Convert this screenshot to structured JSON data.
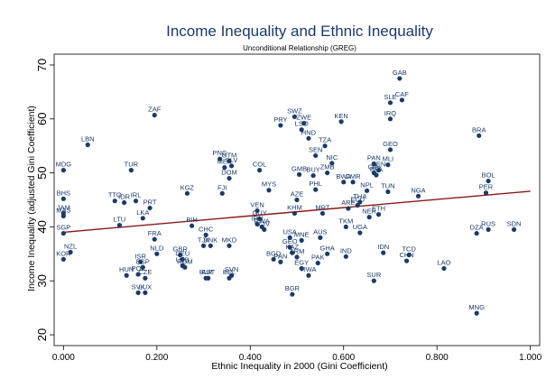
{
  "chart_data": {
    "type": "scatter",
    "title": "Income Inequality and Ethnic Inequality",
    "subtitle": "Unconditional Relationship (GREG)",
    "xlabel": "Ethnic Inequality in 2000 (Gini Coefficient)",
    "ylabel": "Income Inequality (adjusted Gini Coefficient)",
    "xlim": [
      -0.02,
      1.02
    ],
    "ylim": [
      18,
      72
    ],
    "xticks": [
      "0.000",
      "0.200",
      "0.400",
      "0.600",
      "0.800",
      "1.000"
    ],
    "yticks": [
      "20",
      "30",
      "40",
      "50",
      "60",
      "70"
    ],
    "grid": false,
    "colors": {
      "points": "#1a3a6b",
      "fit_line": "#8b1a1a",
      "title": "#1a3a6b"
    },
    "fit_line": {
      "x": [
        0.0,
        1.0
      ],
      "y": [
        39.0,
        46.6
      ]
    },
    "points": [
      {
        "label": "MDG",
        "x": 0.0,
        "y": 50.5
      },
      {
        "label": "BHS",
        "x": 0.0,
        "y": 45.2
      },
      {
        "label": "JAM",
        "x": 0.0,
        "y": 42.5
      },
      {
        "label": "MAS",
        "x": 0.0,
        "y": 42.0
      },
      {
        "label": "SGP",
        "x": 0.0,
        "y": 38.8
      },
      {
        "label": "KOR",
        "x": 0.0,
        "y": 34.0
      },
      {
        "label": "NZL",
        "x": 0.015,
        "y": 35.3
      },
      {
        "label": "LBN",
        "x": 0.052,
        "y": 55.2
      },
      {
        "label": "LTU",
        "x": 0.12,
        "y": 40.3
      },
      {
        "label": "TTO",
        "x": 0.11,
        "y": 44.8
      },
      {
        "label": "IRL",
        "x": 0.155,
        "y": 44.8
      },
      {
        "label": "IDR",
        "x": 0.13,
        "y": 44.5
      },
      {
        "label": "PRT",
        "x": 0.185,
        "y": 43.5
      },
      {
        "label": "TUR",
        "x": 0.145,
        "y": 50.5
      },
      {
        "label": "LKA",
        "x": 0.17,
        "y": 41.6
      },
      {
        "label": "ZAF",
        "x": 0.195,
        "y": 60.7
      },
      {
        "label": "ISR",
        "x": 0.165,
        "y": 33.5
      },
      {
        "label": "ESP",
        "x": 0.17,
        "y": 32.5
      },
      {
        "label": "HUN",
        "x": 0.135,
        "y": 31.0
      },
      {
        "label": "POL",
        "x": 0.16,
        "y": 31.2
      },
      {
        "label": "CZE",
        "x": 0.175,
        "y": 30.5
      },
      {
        "label": "SVK",
        "x": 0.16,
        "y": 27.8
      },
      {
        "label": "LUX",
        "x": 0.175,
        "y": 27.8
      },
      {
        "label": "FRA",
        "x": 0.195,
        "y": 37.7
      },
      {
        "label": "NLD",
        "x": 0.2,
        "y": 35.0
      },
      {
        "label": "GBR",
        "x": 0.25,
        "y": 34.8
      },
      {
        "label": "CEU",
        "x": 0.255,
        "y": 34.0
      },
      {
        "label": "UZB",
        "x": 0.255,
        "y": 32.8
      },
      {
        "label": "ROM",
        "x": 0.26,
        "y": 32.5
      },
      {
        "label": "BLR",
        "x": 0.305,
        "y": 30.5
      },
      {
        "label": "AUT",
        "x": 0.31,
        "y": 30.5
      },
      {
        "label": "SVN",
        "x": 0.36,
        "y": 31.0
      },
      {
        "label": "BEL",
        "x": 0.355,
        "y": 30.5
      },
      {
        "label": "BIH",
        "x": 0.275,
        "y": 40.2
      },
      {
        "label": "CHC",
        "x": 0.305,
        "y": 38.5
      },
      {
        "label": "DNK",
        "x": 0.315,
        "y": 36.5
      },
      {
        "label": "MKD",
        "x": 0.355,
        "y": 36.5
      },
      {
        "label": "TJK",
        "x": 0.3,
        "y": 36.5
      },
      {
        "label": "KGZ",
        "x": 0.265,
        "y": 46.2
      },
      {
        "label": "PNG",
        "x": 0.335,
        "y": 52.6
      },
      {
        "label": "GTM",
        "x": 0.355,
        "y": 52.2
      },
      {
        "label": "SLV",
        "x": 0.36,
        "y": 51.3
      },
      {
        "label": "MEX",
        "x": 0.345,
        "y": 51.0
      },
      {
        "label": "DOM",
        "x": 0.355,
        "y": 49.0
      },
      {
        "label": "FJI",
        "x": 0.34,
        "y": 46.2
      },
      {
        "label": "COL",
        "x": 0.42,
        "y": 50.5
      },
      {
        "label": "MYS",
        "x": 0.44,
        "y": 46.8
      },
      {
        "label": "VEN",
        "x": 0.415,
        "y": 43.0
      },
      {
        "label": "GUY",
        "x": 0.42,
        "y": 41.5
      },
      {
        "label": "IRN",
        "x": 0.415,
        "y": 40.5
      },
      {
        "label": "RWA",
        "x": 0.425,
        "y": 40.0
      },
      {
        "label": "CIV",
        "x": 0.43,
        "y": 39.5
      },
      {
        "label": "SWZ",
        "x": 0.495,
        "y": 60.4
      },
      {
        "label": "PRY",
        "x": 0.465,
        "y": 58.8
      },
      {
        "label": "ZWE",
        "x": 0.515,
        "y": 59.2
      },
      {
        "label": "LSO",
        "x": 0.51,
        "y": 58.0
      },
      {
        "label": "HND",
        "x": 0.525,
        "y": 56.4
      },
      {
        "label": "TZA",
        "x": 0.56,
        "y": 55.0
      },
      {
        "label": "KEN",
        "x": 0.595,
        "y": 59.5
      },
      {
        "label": "SEN",
        "x": 0.54,
        "y": 53.2
      },
      {
        "label": "NIC",
        "x": 0.575,
        "y": 51.8
      },
      {
        "label": "GMB",
        "x": 0.505,
        "y": 49.7
      },
      {
        "label": "BUY",
        "x": 0.535,
        "y": 49.5
      },
      {
        "label": "ZMB",
        "x": 0.565,
        "y": 50.0
      },
      {
        "label": "PHL",
        "x": 0.54,
        "y": 46.9
      },
      {
        "label": "AZE",
        "x": 0.5,
        "y": 45.0
      },
      {
        "label": "KHM",
        "x": 0.495,
        "y": 42.5
      },
      {
        "label": "MRT",
        "x": 0.555,
        "y": 42.5
      },
      {
        "label": "USA",
        "x": 0.485,
        "y": 38.0
      },
      {
        "label": "MNE",
        "x": 0.51,
        "y": 37.5
      },
      {
        "label": "AUS",
        "x": 0.55,
        "y": 38.0
      },
      {
        "label": "GEO",
        "x": 0.485,
        "y": 36.2
      },
      {
        "label": "KAZ",
        "x": 0.49,
        "y": 35.2
      },
      {
        "label": "ARM",
        "x": 0.5,
        "y": 34.4
      },
      {
        "label": "BGD",
        "x": 0.45,
        "y": 34.0
      },
      {
        "label": "PAN",
        "x": 0.465,
        "y": 33.5
      },
      {
        "label": "EGY",
        "x": 0.51,
        "y": 32.3
      },
      {
        "label": "RWA",
        "x": 0.525,
        "y": 31.0
      },
      {
        "label": "GHA",
        "x": 0.565,
        "y": 35.0
      },
      {
        "label": "PAK",
        "x": 0.545,
        "y": 33.3
      },
      {
        "label": "BGR",
        "x": 0.49,
        "y": 27.5
      },
      {
        "label": "IRQ",
        "x": 0.7,
        "y": 60.0
      },
      {
        "label": "GAB",
        "x": 0.72,
        "y": 67.5
      },
      {
        "label": "SLE",
        "x": 0.7,
        "y": 63.0
      },
      {
        "label": "CAF",
        "x": 0.725,
        "y": 63.5
      },
      {
        "label": "GEO",
        "x": 0.7,
        "y": 54.3
      },
      {
        "label": "PAN",
        "x": 0.665,
        "y": 51.7
      },
      {
        "label": "MLI",
        "x": 0.695,
        "y": 51.5
      },
      {
        "label": "BEN",
        "x": 0.675,
        "y": 50.5
      },
      {
        "label": "GIN",
        "x": 0.665,
        "y": 50.0
      },
      {
        "label": "BFA",
        "x": 0.67,
        "y": 49.6
      },
      {
        "label": "BWA",
        "x": 0.6,
        "y": 48.3
      },
      {
        "label": "CMR",
        "x": 0.62,
        "y": 48.3
      },
      {
        "label": "NPL",
        "x": 0.65,
        "y": 46.7
      },
      {
        "label": "TUN",
        "x": 0.695,
        "y": 46.5
      },
      {
        "label": "THA",
        "x": 0.635,
        "y": 44.6
      },
      {
        "label": "ECU",
        "x": 0.63,
        "y": 44.0
      },
      {
        "label": "ARE",
        "x": 0.61,
        "y": 43.4
      },
      {
        "label": "NER",
        "x": 0.655,
        "y": 41.8
      },
      {
        "label": "ETH",
        "x": 0.675,
        "y": 42.3
      },
      {
        "label": "TKM",
        "x": 0.605,
        "y": 40.0
      },
      {
        "label": "UGA",
        "x": 0.635,
        "y": 38.9
      },
      {
        "label": "IND",
        "x": 0.605,
        "y": 34.5
      },
      {
        "label": "IDN",
        "x": 0.685,
        "y": 35.2
      },
      {
        "label": "SUR",
        "x": 0.665,
        "y": 30.0
      },
      {
        "label": "TCD",
        "x": 0.74,
        "y": 34.8
      },
      {
        "label": "CHN",
        "x": 0.735,
        "y": 33.7
      },
      {
        "label": "NGA",
        "x": 0.76,
        "y": 45.7
      },
      {
        "label": "LAO",
        "x": 0.815,
        "y": 32.3
      },
      {
        "label": "BRA",
        "x": 0.89,
        "y": 56.9
      },
      {
        "label": "BOL",
        "x": 0.91,
        "y": 48.5
      },
      {
        "label": "PER",
        "x": 0.905,
        "y": 46.3
      },
      {
        "label": "DZA",
        "x": 0.885,
        "y": 38.8
      },
      {
        "label": "RUS",
        "x": 0.91,
        "y": 39.5
      },
      {
        "label": "SDN",
        "x": 0.965,
        "y": 39.5
      },
      {
        "label": "MNG",
        "x": 0.885,
        "y": 24.0
      }
    ]
  }
}
